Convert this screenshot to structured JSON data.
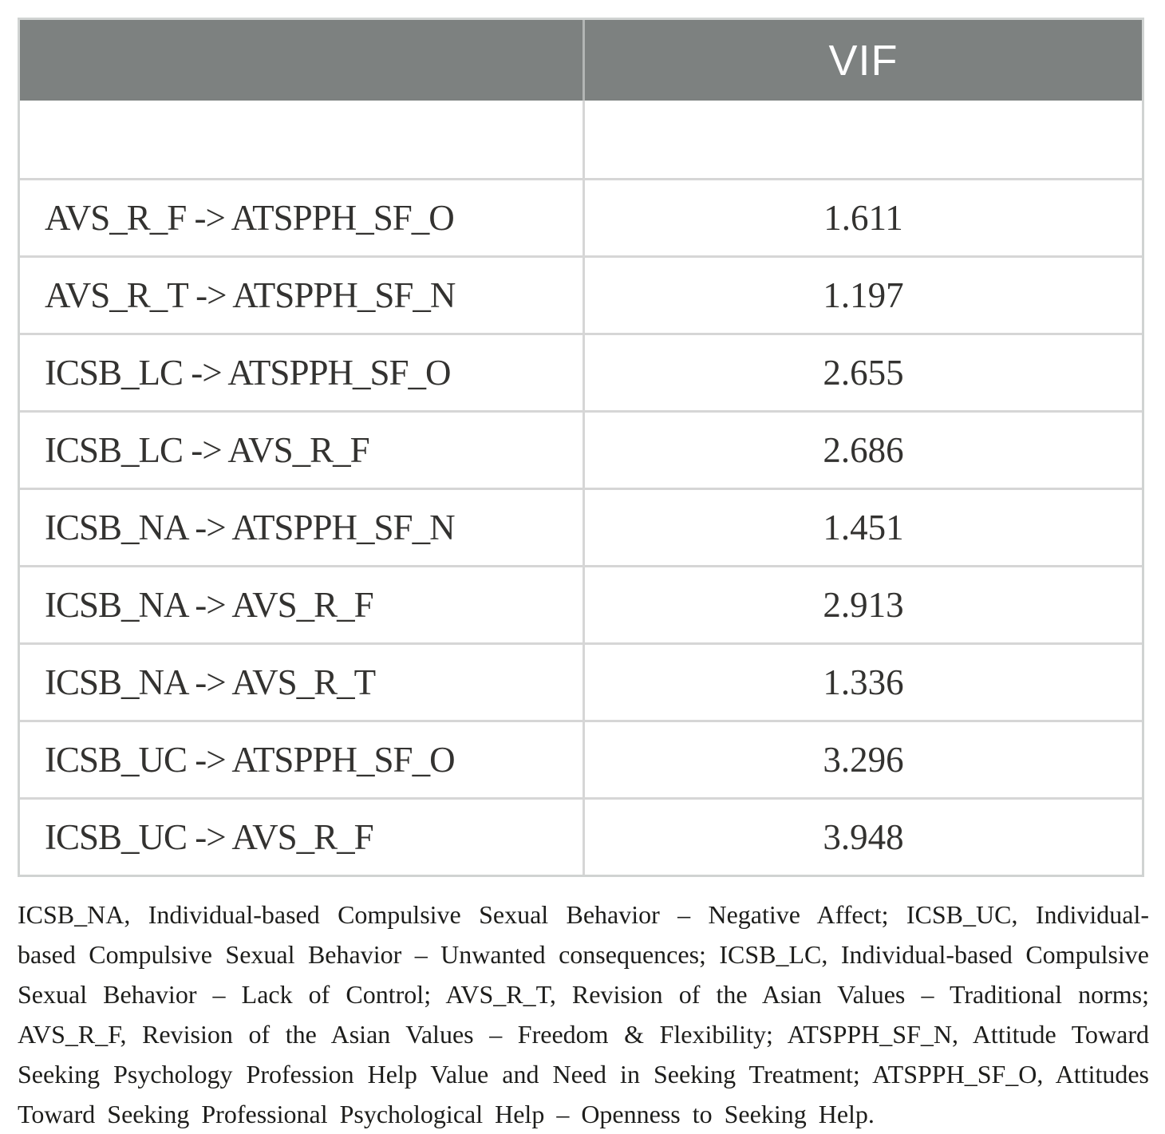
{
  "table": {
    "header": {
      "path_label": "",
      "vif_label": "VIF"
    },
    "rows": [
      {
        "path": "AVS_R_F -> ATSPPH_SF_O",
        "vif": "1.611"
      },
      {
        "path": "AVS_R_T -> ATSPPH_SF_N",
        "vif": "1.197"
      },
      {
        "path": "ICSB_LC -> ATSPPH_SF_O",
        "vif": "2.655"
      },
      {
        "path": "ICSB_LC -> AVS_R_F",
        "vif": "2.686"
      },
      {
        "path": "ICSB_NA -> ATSPPH_SF_N",
        "vif": "1.451"
      },
      {
        "path": "ICSB_NA -> AVS_R_F",
        "vif": "2.913"
      },
      {
        "path": "ICSB_NA -> AVS_R_T",
        "vif": "1.336"
      },
      {
        "path": "ICSB_UC -> ATSPPH_SF_O",
        "vif": "3.296"
      },
      {
        "path": "ICSB_UC -> AVS_R_F",
        "vif": "3.948"
      }
    ]
  },
  "footnote": "ICSB_NA, Individual-based Compulsive Sexual Behavior – Negative Affect; ICSB_UC, Individual-based Compulsive Sexual Behavior – Unwanted consequences; ICSB_LC, Individual-based Compulsive Sexual Behavior – Lack of Control; AVS_R_T, Revision of the Asian Values – Traditional norms; AVS_R_F, Revision of the Asian Values – Freedom & Flexibility; ATSPPH_SF_N, Attitude Toward Seeking Psychology Profession Help Value and Need in Seeking Treatment; ATSPPH_SF_O, Attitudes Toward Seeking Professional Psychological Help – Openness to Seeking Help.",
  "colors": {
    "header_bg": "#7d8180",
    "header_text": "#ffffff",
    "header_divider": "#b2b5b4",
    "border_outer": "#d0d3d2",
    "border_inner": "#d6d6d6",
    "cell_text": "#333230",
    "footnote_text": "#1d1d1b"
  }
}
